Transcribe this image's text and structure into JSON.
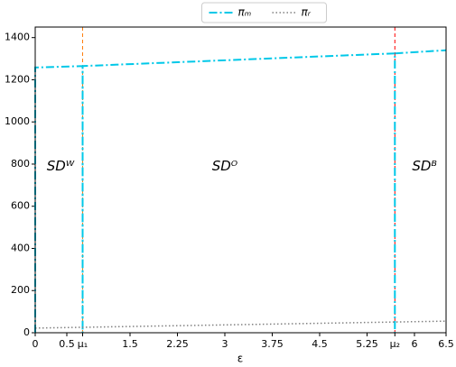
{
  "chart_data": {
    "type": "line",
    "xlabel": "ε",
    "xlim": [
      0,
      6.5
    ],
    "ylim": [
      0,
      1450
    ],
    "xticks": [
      0,
      0.5,
      {
        "value": 0.75,
        "label": "μ₁"
      },
      1.5,
      2.25,
      3,
      3.75,
      4.5,
      5.25,
      {
        "value": 5.69,
        "label": "μ₂"
      },
      6,
      6.5
    ],
    "yticks": [
      0,
      200,
      400,
      600,
      800,
      1000,
      1200,
      1400
    ],
    "series": [
      {
        "name": "πₘ",
        "color": "#00c8e8",
        "style": "dashdot",
        "x": [
          0,
          0,
          0.75,
          0.75,
          0.75,
          5.69,
          5.69,
          5.69,
          6.5
        ],
        "values": [
          0,
          1258,
          1265,
          0,
          1265,
          1325,
          0,
          1325,
          1340
        ]
      },
      {
        "name": "πᵣ",
        "color": "#808080",
        "style": "dotted",
        "x": [
          0,
          6.5
        ],
        "values": [
          22,
          55
        ]
      }
    ],
    "vlines": [
      {
        "x": 0.75,
        "color": "#ff7f0e"
      },
      {
        "x": 5.69,
        "color": "#ff0000"
      }
    ],
    "annotations": [
      {
        "text": "SDᵂ",
        "x": 0.4,
        "y": 790
      },
      {
        "text": "SDᴼ",
        "x": 3,
        "y": 790
      },
      {
        "text": "SDᴮ",
        "x": 6.16,
        "y": 790
      }
    ],
    "legend": "top-center"
  }
}
